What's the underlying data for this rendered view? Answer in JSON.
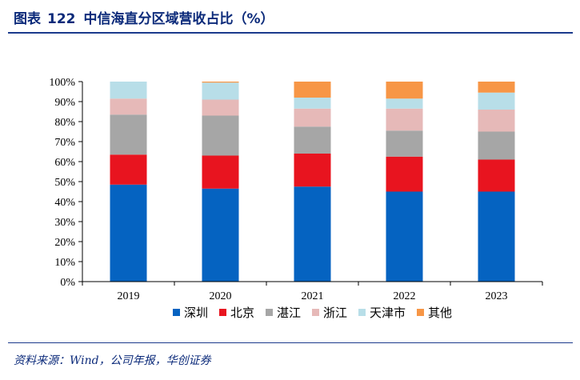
{
  "header": {
    "figure_label": "图表",
    "figure_number": "122",
    "title": "中信海直分区域营收占比（%）"
  },
  "footer": {
    "source": "资料来源：Wind，公司年报，华创证券"
  },
  "chart_data": {
    "type": "bar",
    "stacked": true,
    "categories": [
      "2019",
      "2020",
      "2021",
      "2022",
      "2023"
    ],
    "ylim": [
      0,
      100
    ],
    "yticks": [
      "0%",
      "10%",
      "20%",
      "30%",
      "40%",
      "50%",
      "60%",
      "70%",
      "80%",
      "90%",
      "100%"
    ],
    "grid": false,
    "legend": "bottom",
    "series": [
      {
        "name": "深圳",
        "color": "#0563c1",
        "values": [
          48.5,
          46.5,
          47.5,
          45.0,
          45.0
        ]
      },
      {
        "name": "北京",
        "color": "#e8141f",
        "values": [
          15.0,
          16.5,
          16.5,
          17.5,
          16.0
        ]
      },
      {
        "name": "湛江",
        "color": "#a6a6a6",
        "values": [
          20.0,
          20.0,
          13.5,
          13.0,
          14.0
        ]
      },
      {
        "name": "浙江",
        "color": "#e6b9b8",
        "values": [
          8.0,
          8.0,
          9.0,
          11.0,
          11.0
        ]
      },
      {
        "name": "天津市",
        "color": "#b8dee8",
        "values": [
          8.5,
          8.5,
          5.5,
          5.0,
          8.5
        ]
      },
      {
        "name": "其他",
        "color": "#f79646",
        "values": [
          0.0,
          0.5,
          8.0,
          8.5,
          5.5
        ]
      }
    ]
  }
}
